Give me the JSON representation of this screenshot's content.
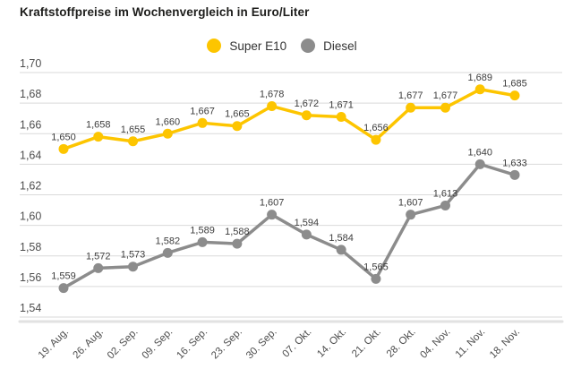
{
  "title": "Kraftstoffpreise im Wochenvergleich in Euro/Liter",
  "colors": {
    "super_e10": "#fdc500",
    "diesel": "#8c8c8c",
    "grid_line": "#d9d9d9",
    "axis_line": "#e2e2e2",
    "tick_label": "#4d4d4d",
    "value_label": "#3d3d3d",
    "title_text": "#1d1d1b",
    "background": "#ffffff"
  },
  "chart_data": {
    "type": "line",
    "title": "Kraftstoffpreise im Wochenvergleich in Euro/Liter",
    "unit": "Euro/Liter",
    "categories": [
      "19. Aug.",
      "26. Aug.",
      "02. Sep.",
      "09. Sep.",
      "16. Sep.",
      "23. Sep.",
      "30. Sep.",
      "07. Okt.",
      "14. Okt.",
      "21. Okt.",
      "28. Okt.",
      "04. Nov.",
      "11. Nov.",
      "18. Nov."
    ],
    "series": [
      {
        "name": "Super E10",
        "color": "#fdc500",
        "values": [
          1.65,
          1.658,
          1.655,
          1.66,
          1.667,
          1.665,
          1.678,
          1.672,
          1.671,
          1.656,
          1.677,
          1.677,
          1.689,
          1.685
        ]
      },
      {
        "name": "Diesel",
        "color": "#8c8c8c",
        "values": [
          1.559,
          1.572,
          1.573,
          1.582,
          1.589,
          1.588,
          1.607,
          1.594,
          1.584,
          1.565,
          1.607,
          1.613,
          1.64,
          1.633
        ]
      }
    ],
    "ylim": [
      1.54,
      1.7
    ],
    "ytick_step": 0.02,
    "ytick_labels": [
      "1,54",
      "1,56",
      "1,58",
      "1,60",
      "1,62",
      "1,64",
      "1,66",
      "1,68",
      "1,70"
    ],
    "grid": true,
    "legend_position": "top-center",
    "decimal_separator": ",",
    "value_label_decimals": 3,
    "tick_label_decimals": 2
  }
}
